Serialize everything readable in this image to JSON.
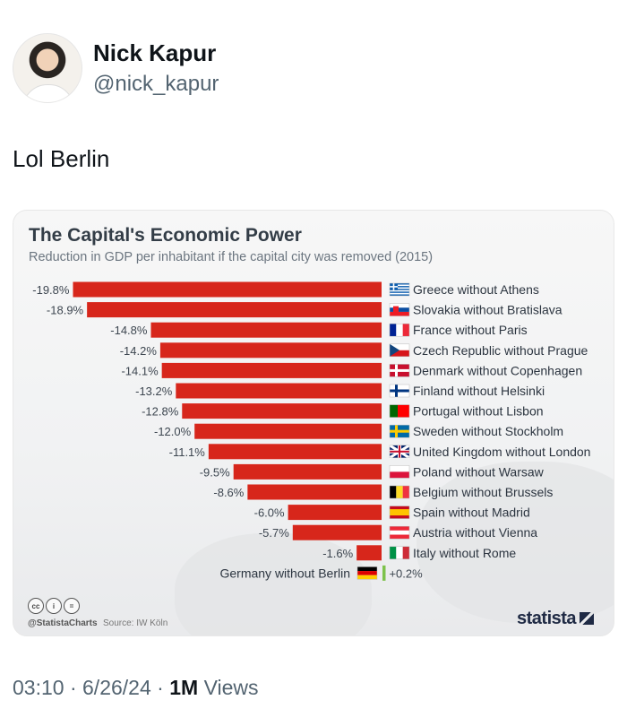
{
  "user": {
    "name": "Nick Kapur",
    "handle": "@nick_kapur"
  },
  "tweet": {
    "text": "Lol Berlin",
    "time": "03:10",
    "date": "6/26/24",
    "views_count": "1M",
    "views_label": "Views"
  },
  "chart": {
    "credit": "@StatistaCharts",
    "source": "Source: IW Köln",
    "logo": "statista",
    "license_icons": [
      "cc-icon",
      "by-icon",
      "nd-icon"
    ]
  },
  "chart_data": {
    "type": "bar",
    "orientation": "horizontal",
    "title": "The Capital's Economic Power",
    "subtitle": "Reduction in GDP per inhabitant if the capital city was removed (2015)",
    "unit": "%",
    "categories": [
      "Greece without Athens",
      "Slovakia without Bratislava",
      "France without Paris",
      "Czech Republic without Prague",
      "Denmark without Copenhagen",
      "Finland without Helsinki",
      "Portugal without Lisbon",
      "Sweden without Stockholm",
      "United Kingdom without London",
      "Poland without Warsaw",
      "Belgium without Brussels",
      "Spain without Madrid",
      "Austria without Vienna",
      "Italy without Rome",
      "Germany without Berlin"
    ],
    "values": [
      -19.8,
      -18.9,
      -14.8,
      -14.2,
      -14.1,
      -13.2,
      -12.8,
      -12.0,
      -11.1,
      -9.5,
      -8.6,
      -6.0,
      -5.7,
      -1.6,
      0.2
    ],
    "value_labels": [
      "-19.8%",
      "-18.9%",
      "-14.8%",
      "-14.2%",
      "-14.1%",
      "-13.2%",
      "-12.8%",
      "-12.0%",
      "-11.1%",
      "-9.5%",
      "-8.6%",
      "-6.0%",
      "-5.7%",
      "-1.6%",
      "+0.2%"
    ],
    "flags": [
      "greece-flag-icon",
      "slovakia-flag-icon",
      "france-flag-icon",
      "czech-flag-icon",
      "denmark-flag-icon",
      "finland-flag-icon",
      "portugal-flag-icon",
      "sweden-flag-icon",
      "uk-flag-icon",
      "poland-flag-icon",
      "belgium-flag-icon",
      "spain-flag-icon",
      "austria-flag-icon",
      "italy-flag-icon",
      "germany-flag-icon"
    ],
    "colors": {
      "negative": "#d7261b",
      "positive": "#7dc24b"
    },
    "grid": false,
    "legend": false
  }
}
